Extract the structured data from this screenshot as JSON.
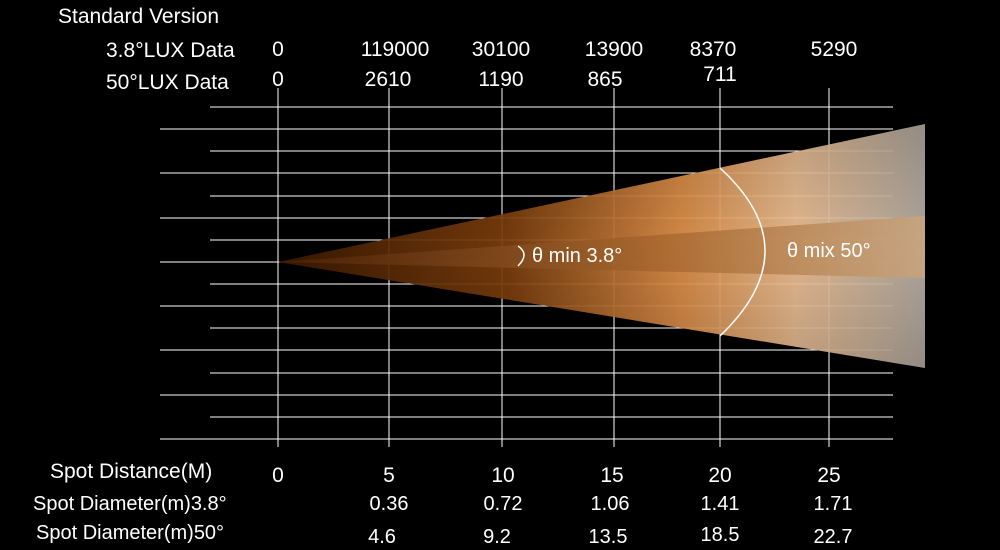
{
  "title": "Standard Version",
  "labels": {
    "lux_narrow": "3.8°LUX Data",
    "lux_wide": "50°LUX Data",
    "distance": "Spot Distance(M)",
    "diameter_narrow": "Spot Diameter(m)3.8°",
    "diameter_wide": "Spot Diameter(m)50°"
  },
  "angles": {
    "narrow_label": "θ min 3.8°",
    "wide_label": "θ mix 50°"
  },
  "colors": {
    "background": "#000000",
    "grid": "#ffffff",
    "beam_outer": "#f0a866",
    "beam_inner": "#5a2a05",
    "beam_end": "#bfb6ac"
  },
  "distances": [
    "0",
    "5",
    "10",
    "15",
    "20",
    "25"
  ],
  "lux_narrow": [
    "0",
    "119000",
    "30100",
    "13900",
    "8370",
    "5290"
  ],
  "lux_wide": [
    "0",
    "2610",
    "1190",
    "865",
    "711",
    ""
  ],
  "diameter_narrow": [
    "",
    "0.36",
    "0.72",
    "1.06",
    "1.41",
    "1.71"
  ],
  "diameter_wide": [
    "",
    "4.6",
    "9.2",
    "13.5",
    "18.5",
    "22.7"
  ]
}
